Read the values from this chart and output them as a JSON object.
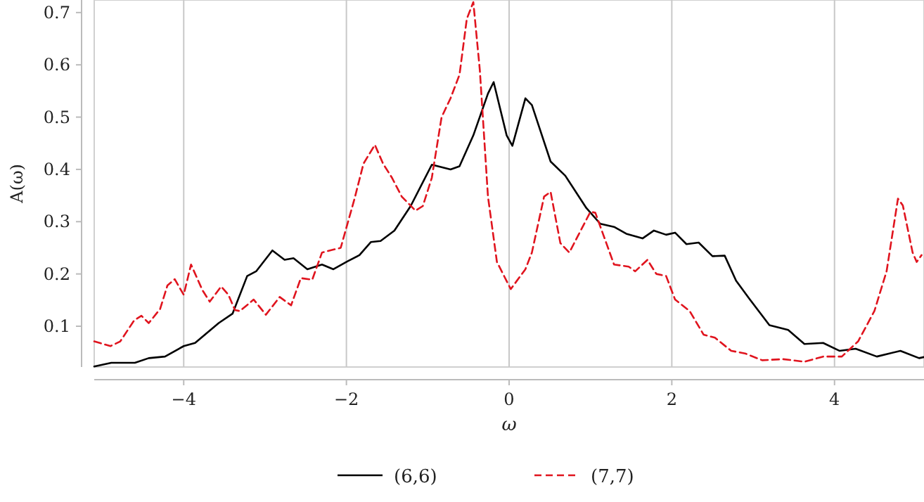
{
  "chart_data": {
    "type": "line",
    "xlabel": "ω",
    "ylabel": "A(ω)",
    "xlim": [
      -5.1,
      5.1
    ],
    "ylim": [
      0.022,
      0.724
    ],
    "xticks": [
      -4,
      -2,
      0,
      2,
      4
    ],
    "yticks": [
      0.1,
      0.2,
      0.3,
      0.4,
      0.5,
      0.6,
      0.7
    ],
    "grid": "x",
    "legend": "bottom",
    "series": [
      {
        "name": "(6,6)",
        "color": "#000000",
        "line_style": "solid",
        "x": [
          -5.1,
          -4.89,
          -4.6,
          -4.43,
          -4.23,
          -4.0,
          -3.86,
          -3.57,
          -3.4,
          -3.22,
          -3.11,
          -2.91,
          -2.76,
          -2.65,
          -2.48,
          -2.3,
          -2.16,
          -1.99,
          -1.84,
          -1.7,
          -1.58,
          -1.41,
          -1.21,
          -0.95,
          -0.72,
          -0.61,
          -0.44,
          -0.26,
          -0.19,
          -0.03,
          0.04,
          0.2,
          0.28,
          0.51,
          0.69,
          0.95,
          1.12,
          1.29,
          1.44,
          1.64,
          1.78,
          1.93,
          2.04,
          2.18,
          2.33,
          2.5,
          2.65,
          2.79,
          2.96,
          3.2,
          3.43,
          3.63,
          3.86,
          4.06,
          4.26,
          4.52,
          4.81,
          5.04,
          5.1
        ],
        "values": [
          0.023,
          0.03,
          0.03,
          0.039,
          0.042,
          0.062,
          0.068,
          0.106,
          0.124,
          0.196,
          0.205,
          0.245,
          0.227,
          0.23,
          0.209,
          0.218,
          0.209,
          0.224,
          0.236,
          0.261,
          0.263,
          0.283,
          0.33,
          0.409,
          0.4,
          0.406,
          0.465,
          0.545,
          0.567,
          0.465,
          0.445,
          0.536,
          0.523,
          0.415,
          0.388,
          0.326,
          0.296,
          0.29,
          0.277,
          0.268,
          0.283,
          0.275,
          0.279,
          0.257,
          0.26,
          0.234,
          0.235,
          0.187,
          0.151,
          0.102,
          0.093,
          0.066,
          0.068,
          0.053,
          0.057,
          0.042,
          0.053,
          0.039,
          0.041
        ]
      },
      {
        "name": "(7,7)",
        "color": "#e0141e",
        "line_style": "dashed",
        "x": [
          -5.1,
          -4.9,
          -4.78,
          -4.61,
          -4.52,
          -4.43,
          -4.29,
          -4.2,
          -4.11,
          -4.0,
          -3.91,
          -3.77,
          -3.68,
          -3.54,
          -3.45,
          -3.37,
          -3.31,
          -3.14,
          -2.99,
          -2.82,
          -2.68,
          -2.56,
          -2.42,
          -2.3,
          -2.07,
          -1.9,
          -1.79,
          -1.65,
          -1.55,
          -1.44,
          -1.32,
          -1.15,
          -1.06,
          -0.95,
          -0.83,
          -0.72,
          -0.61,
          -0.52,
          -0.44,
          -0.36,
          -0.26,
          -0.15,
          0.02,
          0.2,
          0.28,
          0.43,
          0.51,
          0.63,
          0.74,
          0.86,
          1.0,
          1.06,
          1.29,
          1.47,
          1.55,
          1.7,
          1.81,
          1.93,
          2.04,
          2.22,
          2.39,
          2.53,
          2.73,
          2.9,
          3.11,
          3.37,
          3.63,
          3.86,
          4.09,
          4.29,
          4.49,
          4.64,
          4.78,
          4.84,
          4.96,
          5.01,
          5.07
        ],
        "values": [
          0.071,
          0.062,
          0.071,
          0.111,
          0.12,
          0.106,
          0.133,
          0.178,
          0.19,
          0.16,
          0.218,
          0.169,
          0.147,
          0.176,
          0.16,
          0.131,
          0.129,
          0.151,
          0.122,
          0.156,
          0.14,
          0.192,
          0.189,
          0.241,
          0.25,
          0.344,
          0.411,
          0.447,
          0.411,
          0.384,
          0.348,
          0.321,
          0.33,
          0.384,
          0.5,
          0.536,
          0.581,
          0.688,
          0.72,
          0.59,
          0.348,
          0.223,
          0.171,
          0.209,
          0.241,
          0.348,
          0.357,
          0.259,
          0.241,
          0.277,
          0.319,
          0.317,
          0.218,
          0.214,
          0.205,
          0.227,
          0.2,
          0.196,
          0.151,
          0.129,
          0.084,
          0.078,
          0.053,
          0.048,
          0.035,
          0.037,
          0.032,
          0.042,
          0.042,
          0.071,
          0.129,
          0.205,
          0.344,
          0.331,
          0.241,
          0.223,
          0.236
        ]
      }
    ]
  }
}
